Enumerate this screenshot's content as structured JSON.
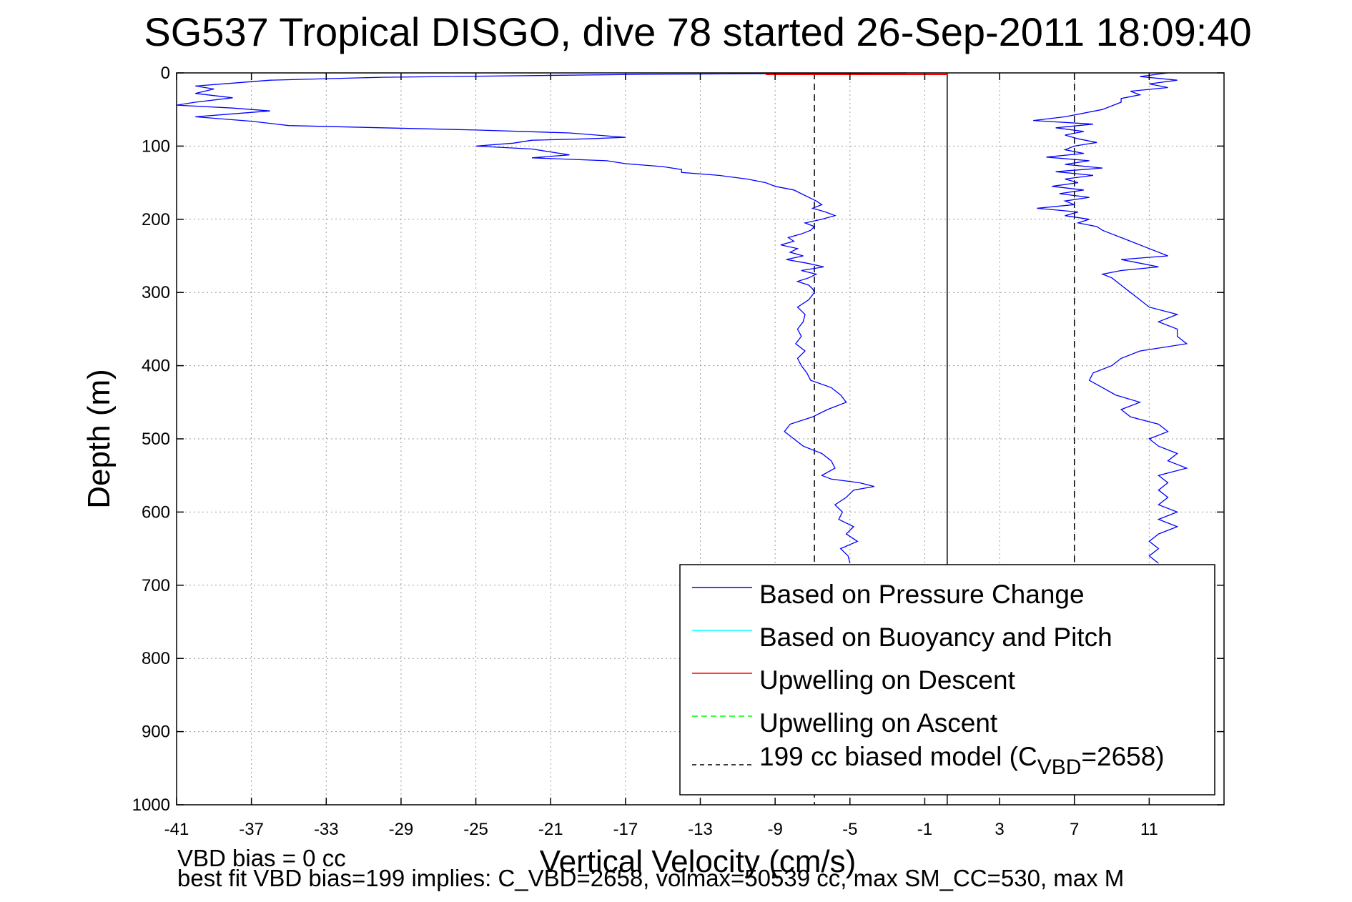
{
  "chart_data": {
    "type": "line",
    "title": "SG537 Tropical DISGO, dive 78 started 26-Sep-2011 18:09:40",
    "xlabel": "Vertical Velocity (cm/s)",
    "ylabel": "Depth (m)",
    "xlim": [
      -41,
      15
    ],
    "ylim": [
      1000,
      0
    ],
    "y_reversed": true,
    "grid": true,
    "legend_position": "lower-right",
    "xticks": [
      "-41",
      "-37",
      "-33",
      "-29",
      "-25",
      "-21",
      "-17",
      "-13",
      "-9",
      "-5",
      "-1",
      "3",
      "7",
      "11"
    ],
    "yticks": [
      "0",
      "100",
      "200",
      "300",
      "400",
      "500",
      "600",
      "700",
      "800",
      "900",
      "1000"
    ],
    "reference_lines": [
      {
        "x": 0.2,
        "style": "solid",
        "color": "#000000"
      }
    ],
    "series": [
      {
        "name": "Based on Pressure Change",
        "color": "#0000ff",
        "style": "solid",
        "legend_style": "solid",
        "descent": {
          "depth": [
            0,
            2,
            6,
            10,
            14,
            18,
            22,
            28,
            34,
            40,
            44,
            48,
            52,
            56,
            60,
            66,
            72,
            78,
            82,
            86,
            88,
            90,
            92,
            96,
            100,
            104,
            108,
            112,
            116,
            120,
            124,
            128,
            132,
            136,
            140,
            145,
            150,
            155,
            160,
            165,
            170,
            175,
            180,
            185,
            190,
            195,
            200,
            205,
            210,
            215,
            220,
            225,
            230,
            235,
            240,
            245,
            250,
            255,
            260,
            265,
            270,
            275,
            280,
            285,
            290,
            295,
            300,
            310,
            320,
            330,
            340,
            350,
            360,
            370,
            380,
            390,
            400,
            410,
            420,
            430,
            440,
            450,
            460,
            470,
            480,
            490,
            500,
            510,
            520,
            530,
            540,
            550,
            555,
            560,
            565,
            570,
            580,
            590,
            600,
            610,
            620,
            630,
            640,
            650,
            660,
            670
          ],
          "velocity": [
            -2,
            -16,
            -30,
            -36,
            -38,
            -40,
            -39,
            -40,
            -38,
            -40,
            -41,
            -38,
            -36,
            -38,
            -40,
            -37,
            -35,
            -25,
            -20,
            -18,
            -17,
            -19,
            -22,
            -23,
            -25,
            -22,
            -21,
            -20,
            -22,
            -18,
            -17,
            -15,
            -14,
            -14,
            -12,
            -10.5,
            -9.5,
            -9,
            -8,
            -7.6,
            -7.2,
            -6.8,
            -6.5,
            -7,
            -6.3,
            -5.8,
            -6.5,
            -7.4,
            -6.9,
            -7.1,
            -7.6,
            -8.3,
            -8,
            -8.7,
            -7.8,
            -8.2,
            -7.5,
            -8.4,
            -7.3,
            -6.4,
            -7.6,
            -6.8,
            -7.2,
            -7.8,
            -7.2,
            -7,
            -6.9,
            -7.2,
            -7.8,
            -7.4,
            -7.5,
            -7.8,
            -7.6,
            -7.9,
            -7.4,
            -7.8,
            -7.6,
            -7.3,
            -7.1,
            -6,
            -5.5,
            -5.2,
            -6.2,
            -7,
            -8.2,
            -8.5,
            -8,
            -7.5,
            -6.5,
            -6,
            -5.8,
            -6.5,
            -6,
            -4.5,
            -3.7,
            -4.8,
            -5.2,
            -5.8,
            -5.4,
            -5.6,
            -4.8,
            -5.2,
            -4.6,
            -5.5,
            -5.1,
            -5
          ]
        },
        "ascent": {
          "depth": [
            0,
            5,
            10,
            15,
            20,
            25,
            30,
            35,
            40,
            45,
            50,
            55,
            60,
            65,
            70,
            75,
            80,
            85,
            90,
            95,
            100,
            105,
            110,
            115,
            120,
            125,
            130,
            135,
            140,
            145,
            150,
            155,
            160,
            165,
            170,
            175,
            180,
            185,
            190,
            195,
            200,
            205,
            210,
            215,
            220,
            225,
            230,
            240,
            250,
            255,
            260,
            265,
            270,
            275,
            280,
            290,
            300,
            310,
            320,
            330,
            340,
            350,
            360,
            370,
            380,
            390,
            400,
            410,
            420,
            430,
            440,
            450,
            460,
            470,
            480,
            490,
            500,
            510,
            520,
            530,
            540,
            550,
            560,
            570,
            580,
            590,
            600,
            610,
            620,
            630,
            640,
            650,
            660,
            670
          ],
          "velocity": [
            12,
            10.5,
            12.5,
            11,
            12,
            10,
            10.5,
            9.5,
            9.5,
            9,
            8.5,
            7.5,
            6.5,
            4.8,
            8,
            6,
            7.5,
            6.5,
            7.2,
            8.2,
            7,
            6.5,
            7.5,
            5.5,
            7.8,
            6.5,
            8.5,
            6,
            8,
            6.5,
            7.2,
            5.8,
            7.5,
            6.2,
            7.8,
            6.5,
            7,
            5,
            7.2,
            6.5,
            7.8,
            7.2,
            8.2,
            8.5,
            9,
            9.5,
            10,
            11,
            12,
            9.5,
            10.5,
            11.5,
            9.5,
            8.5,
            9,
            9.5,
            10,
            10.5,
            11,
            12.5,
            11.5,
            12.5,
            12.5,
            13,
            10.5,
            9.5,
            9,
            8,
            7.8,
            8.5,
            9.2,
            10.5,
            9.5,
            10,
            11.5,
            12,
            11,
            11.5,
            12.5,
            12,
            13,
            11.5,
            12,
            11.5,
            12,
            11.5,
            12.5,
            11.5,
            12.5,
            11.5,
            11,
            11.5,
            11,
            11.5
          ]
        }
      },
      {
        "name": "Based on Buoyancy and Pitch",
        "color": "#00ffff",
        "style": "solid",
        "legend_style": "solid"
      },
      {
        "name": "Upwelling on Descent",
        "color": "#ff0000",
        "style": "solid",
        "legend_style": "solid",
        "depth": [
          0,
          0
        ],
        "velocity": [
          -9.5,
          0.2
        ]
      },
      {
        "name": "Upwelling on Ascent",
        "color": "#00ff00",
        "style": "dashed",
        "legend_style": "dashed"
      },
      {
        "name": "199 cc biased model (C",
        "name_subscript": "VBD",
        "name_suffix": "=2658)",
        "color": "#000000",
        "style": "dashed",
        "legend_style": "dashed",
        "descent_x": -6.9,
        "ascent_x": 7
      }
    ]
  },
  "footer": {
    "line1": "VBD bias = 0 cc",
    "line2": "best fit VBD bias=199 implies: C_VBD=2658, volmax=50539 cc, max SM_CC=530, max M"
  }
}
